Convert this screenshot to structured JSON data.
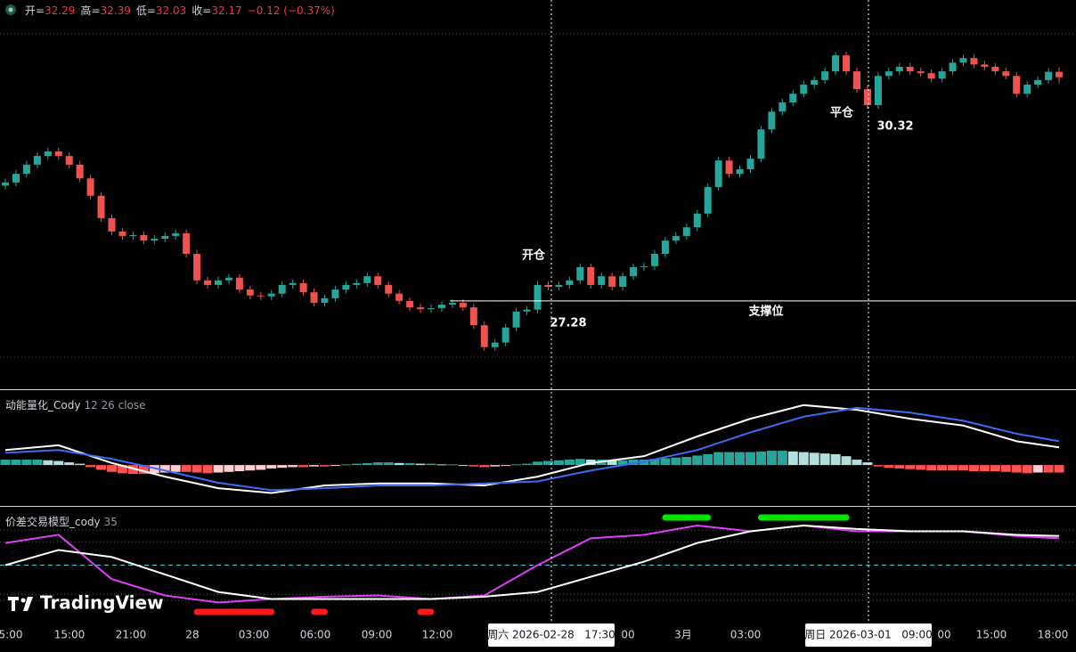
{
  "header": {
    "items": [
      {
        "label": "开=",
        "value": 32.29
      },
      {
        "label": "高=",
        "value": 32.39
      },
      {
        "label": "低=",
        "value": 32.03
      },
      {
        "label": "收=",
        "value": 32.17
      }
    ],
    "change": "−0.12 (−0.37%)"
  },
  "brand": "TradingView",
  "time_axis": [
    "5:00",
    "15:00",
    "21:00",
    "28",
    "03:00",
    "06:00",
    "09:00",
    "12:00",
    "00",
    "3月",
    "03:00",
    "00",
    "15:00",
    "18:00"
  ],
  "crosshair_labels": [
    "周六 2026-02-28   17:30",
    "周日 2026-03-01   09:00"
  ],
  "chart_data": [
    {
      "type": "candlestick",
      "up_color": "#26a69a",
      "down_color": "#ef5350",
      "ylim": [
        25.35,
        33.86
      ],
      "annotations": {
        "open_label": "开仓",
        "close_label": "平仓",
        "support_label": "支撑位",
        "support_price": 27.28,
        "close_price": 30.32
      },
      "open": [
        29.8,
        29.87,
        30.06,
        30.26,
        30.45,
        30.55,
        30.45,
        30.26,
        29.96,
        29.58,
        29.09,
        28.8,
        28.7,
        28.72,
        28.6,
        28.64,
        28.7,
        28.76,
        28.31,
        27.73,
        27.63,
        27.73,
        27.79,
        27.53,
        27.4,
        27.38,
        27.44,
        27.63,
        27.67,
        27.47,
        27.24,
        27.34,
        27.53,
        27.63,
        27.67,
        27.82,
        27.63,
        27.44,
        27.28,
        27.14,
        27.1,
        27.12,
        27.2,
        27.24,
        27.14,
        26.75,
        26.27,
        26.37,
        26.7,
        27.05,
        27.09,
        27.63,
        27.59,
        27.63,
        27.73,
        28.02,
        27.63,
        27.82,
        27.59,
        27.82,
        28.02,
        28.04,
        28.31,
        28.6,
        28.7,
        28.89,
        29.19,
        29.77,
        30.35,
        30.06,
        30.16,
        30.39,
        31.03,
        31.42,
        31.62,
        31.81,
        32.01,
        32.11,
        32.3,
        32.65,
        32.3,
        31.91,
        31.56,
        32.2,
        32.3,
        32.4,
        32.3,
        32.26,
        32.14,
        32.3,
        32.49,
        32.59,
        32.45,
        32.4,
        32.3,
        32.2,
        31.81,
        32.01,
        32.11,
        32.29
      ],
      "high": [
        29.95,
        30.14,
        30.34,
        30.53,
        30.63,
        30.63,
        30.53,
        30.34,
        30.04,
        29.66,
        29.17,
        28.88,
        28.8,
        28.8,
        28.72,
        28.78,
        28.84,
        28.84,
        28.39,
        27.81,
        27.81,
        27.87,
        27.87,
        27.61,
        27.48,
        27.52,
        27.71,
        27.75,
        27.75,
        27.55,
        27.42,
        27.61,
        27.71,
        27.75,
        27.9,
        27.9,
        27.71,
        27.52,
        27.36,
        27.22,
        27.2,
        27.28,
        27.32,
        27.32,
        27.22,
        26.83,
        26.45,
        26.78,
        27.13,
        27.17,
        27.71,
        27.71,
        27.71,
        27.81,
        28.1,
        28.1,
        27.9,
        27.9,
        27.9,
        28.1,
        28.12,
        28.39,
        28.68,
        28.78,
        28.97,
        29.27,
        29.85,
        30.43,
        30.43,
        30.24,
        30.47,
        31.11,
        31.5,
        31.7,
        31.89,
        32.09,
        32.19,
        32.38,
        32.73,
        32.73,
        32.38,
        31.99,
        32.28,
        32.38,
        32.48,
        32.48,
        32.38,
        32.34,
        32.38,
        32.57,
        32.67,
        32.67,
        32.53,
        32.48,
        32.38,
        32.28,
        32.09,
        32.19,
        32.37,
        32.39
      ],
      "low": [
        29.72,
        29.79,
        29.98,
        30.18,
        30.37,
        30.37,
        30.18,
        29.88,
        29.5,
        29.01,
        28.72,
        28.62,
        28.62,
        28.52,
        28.52,
        28.56,
        28.62,
        28.23,
        27.65,
        27.55,
        27.55,
        27.65,
        27.45,
        27.32,
        27.3,
        27.3,
        27.36,
        27.55,
        27.39,
        27.16,
        27.16,
        27.26,
        27.45,
        27.55,
        27.59,
        27.55,
        27.36,
        27.2,
        27.06,
        27.02,
        27.02,
        27.04,
        27.12,
        27.06,
        26.67,
        26.19,
        26.19,
        26.29,
        26.62,
        26.97,
        27.01,
        27.51,
        27.51,
        27.55,
        27.65,
        27.55,
        27.55,
        27.51,
        27.51,
        27.74,
        27.94,
        27.96,
        28.23,
        28.52,
        28.62,
        28.81,
        29.11,
        29.69,
        29.98,
        29.98,
        30.08,
        30.31,
        30.95,
        31.34,
        31.54,
        31.73,
        31.93,
        32.03,
        32.22,
        32.22,
        31.83,
        31.48,
        31.48,
        32.12,
        32.22,
        32.22,
        32.18,
        32.06,
        32.06,
        32.22,
        32.41,
        32.37,
        32.32,
        32.22,
        32.12,
        31.73,
        31.73,
        31.93,
        32.03,
        32.03
      ],
      "close": [
        29.87,
        30.06,
        30.26,
        30.45,
        30.55,
        30.45,
        30.26,
        29.96,
        29.58,
        29.09,
        28.8,
        28.7,
        28.72,
        28.6,
        28.64,
        28.7,
        28.76,
        28.31,
        27.73,
        27.63,
        27.73,
        27.79,
        27.53,
        27.4,
        27.38,
        27.44,
        27.63,
        27.67,
        27.47,
        27.24,
        27.34,
        27.53,
        27.63,
        27.67,
        27.82,
        27.63,
        27.44,
        27.28,
        27.14,
        27.1,
        27.12,
        27.2,
        27.24,
        27.14,
        26.75,
        26.27,
        26.37,
        26.7,
        27.05,
        27.09,
        27.63,
        27.59,
        27.63,
        27.73,
        28.02,
        27.63,
        27.82,
        27.59,
        27.82,
        28.02,
        28.04,
        28.31,
        28.6,
        28.7,
        28.89,
        29.19,
        29.77,
        30.35,
        30.06,
        30.16,
        30.39,
        31.03,
        31.42,
        31.62,
        31.81,
        32.01,
        32.11,
        32.3,
        32.65,
        32.3,
        31.91,
        31.56,
        32.2,
        32.3,
        32.4,
        32.3,
        32.26,
        32.14,
        32.3,
        32.49,
        32.59,
        32.45,
        32.4,
        32.3,
        32.2,
        31.81,
        32.01,
        32.11,
        32.29,
        32.17
      ]
    },
    {
      "type": "macd",
      "title": "动能量化_Cody",
      "params": "12 26 close",
      "ylim": [
        -0.6,
        1.1
      ],
      "x": [
        0,
        5,
        10,
        15,
        20,
        25,
        30,
        35,
        40,
        45,
        50,
        55,
        60,
        65,
        70,
        75,
        80,
        85,
        90,
        95,
        99
      ],
      "series": [
        {
          "color": "#ffffff",
          "values": [
            0.22,
            0.29,
            0.03,
            -0.17,
            -0.34,
            -0.41,
            -0.3,
            -0.27,
            -0.27,
            -0.3,
            -0.17,
            0.03,
            0.13,
            0.42,
            0.68,
            0.88,
            0.81,
            0.68,
            0.58,
            0.35,
            0.26
          ]
        },
        {
          "color": "#3d6bf2",
          "values": [
            0.18,
            0.22,
            0.09,
            -0.08,
            -0.26,
            -0.37,
            -0.34,
            -0.3,
            -0.3,
            -0.27,
            -0.24,
            -0.08,
            0.05,
            0.22,
            0.48,
            0.71,
            0.84,
            0.77,
            0.65,
            0.46,
            0.35
          ]
        }
      ],
      "histogram": [
        0.08,
        0.08,
        0.08,
        0.08,
        0.07,
        0.06,
        0.04,
        0.02,
        -0.03,
        -0.07,
        -0.1,
        -0.12,
        -0.13,
        -0.13,
        -0.12,
        -0.11,
        -0.1,
        -0.1,
        -0.11,
        -0.12,
        -0.11,
        -0.1,
        -0.09,
        -0.08,
        -0.07,
        -0.05,
        -0.04,
        -0.03,
        -0.03,
        -0.02,
        -0.02,
        -0.01,
        0.01,
        0.02,
        0.03,
        0.04,
        0.04,
        0.03,
        0.03,
        0.02,
        0.02,
        0.01,
        0.01,
        0.0,
        -0.02,
        -0.03,
        -0.02,
        -0.01,
        0.01,
        0.02,
        0.05,
        0.06,
        0.07,
        0.08,
        0.09,
        0.08,
        0.08,
        0.07,
        0.07,
        0.08,
        0.08,
        0.09,
        0.1,
        0.11,
        0.12,
        0.14,
        0.16,
        0.19,
        0.19,
        0.19,
        0.19,
        0.2,
        0.21,
        0.21,
        0.2,
        0.19,
        0.18,
        0.17,
        0.16,
        0.13,
        0.08,
        0.04,
        -0.02,
        -0.04,
        -0.05,
        -0.06,
        -0.07,
        -0.08,
        -0.08,
        -0.08,
        -0.08,
        -0.09,
        -0.09,
        -0.09,
        -0.1,
        -0.11,
        -0.12,
        -0.11,
        -0.11,
        -0.11
      ]
    },
    {
      "type": "oscillator",
      "title": "价差交易模型_cody",
      "params": "35",
      "ylim": [
        0,
        100
      ],
      "levels": [
        80,
        70,
        25,
        20
      ],
      "midline": 50,
      "x": [
        0,
        5,
        10,
        15,
        20,
        25,
        30,
        35,
        40,
        45,
        50,
        55,
        60,
        65,
        70,
        75,
        80,
        85,
        90,
        95,
        99
      ],
      "series": [
        {
          "color": "#e040fb",
          "values": [
            69,
            76,
            38,
            24,
            18,
            21,
            23,
            24,
            21,
            24,
            50,
            73,
            76,
            84,
            79,
            84,
            79,
            79,
            79,
            75,
            73
          ]
        },
        {
          "color": "#ffffff",
          "values": [
            50,
            63,
            57,
            42,
            27,
            21,
            21,
            21,
            21,
            23,
            27,
            40,
            53,
            69,
            79,
            84,
            81,
            79,
            79,
            76,
            75
          ]
        }
      ],
      "buy_zones": [
        [
          62,
          66
        ],
        [
          71,
          79
        ]
      ],
      "sell_zones": [
        [
          18,
          25
        ],
        [
          29,
          30
        ],
        [
          39,
          40
        ]
      ]
    }
  ]
}
